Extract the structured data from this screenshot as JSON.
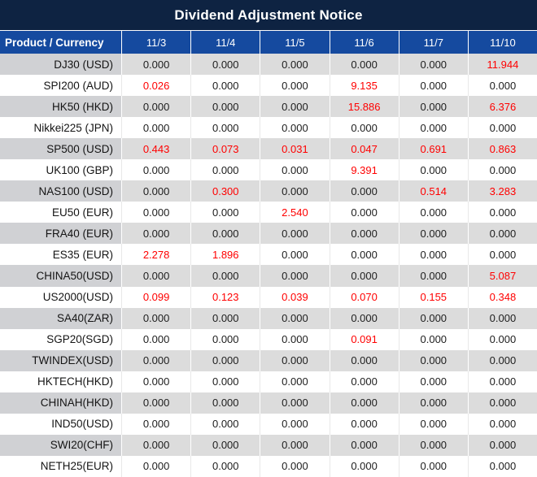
{
  "title": "Dividend Adjustment Notice",
  "table": {
    "product_header": "Product / Currency",
    "date_headers": [
      "11/3",
      "11/4",
      "11/5",
      "11/6",
      "11/7",
      "11/10"
    ],
    "rows": [
      {
        "product": "DJ30 (USD)",
        "values": [
          "0.000",
          "0.000",
          "0.000",
          "0.000",
          "0.000",
          "11.944"
        ],
        "red": [
          5
        ]
      },
      {
        "product": "SPI200 (AUD)",
        "values": [
          "0.026",
          "0.000",
          "0.000",
          "9.135",
          "0.000",
          "0.000"
        ],
        "red": [
          0,
          3
        ]
      },
      {
        "product": "HK50 (HKD)",
        "values": [
          "0.000",
          "0.000",
          "0.000",
          "15.886",
          "0.000",
          "6.376"
        ],
        "red": [
          3,
          5
        ]
      },
      {
        "product": "Nikkei225 (JPN)",
        "values": [
          "0.000",
          "0.000",
          "0.000",
          "0.000",
          "0.000",
          "0.000"
        ],
        "red": []
      },
      {
        "product": "SP500 (USD)",
        "values": [
          "0.443",
          "0.073",
          "0.031",
          "0.047",
          "0.691",
          "0.863"
        ],
        "red": [
          0,
          1,
          2,
          3,
          4,
          5
        ]
      },
      {
        "product": "UK100 (GBP)",
        "values": [
          "0.000",
          "0.000",
          "0.000",
          "9.391",
          "0.000",
          "0.000"
        ],
        "red": [
          3
        ]
      },
      {
        "product": "NAS100 (USD)",
        "values": [
          "0.000",
          "0.300",
          "0.000",
          "0.000",
          "0.514",
          "3.283"
        ],
        "red": [
          1,
          4,
          5
        ]
      },
      {
        "product": "EU50 (EUR)",
        "values": [
          "0.000",
          "0.000",
          "2.540",
          "0.000",
          "0.000",
          "0.000"
        ],
        "red": [
          2
        ]
      },
      {
        "product": "FRA40 (EUR)",
        "values": [
          "0.000",
          "0.000",
          "0.000",
          "0.000",
          "0.000",
          "0.000"
        ],
        "red": []
      },
      {
        "product": "ES35 (EUR)",
        "values": [
          "2.278",
          "1.896",
          "0.000",
          "0.000",
          "0.000",
          "0.000"
        ],
        "red": [
          0,
          1
        ]
      },
      {
        "product": "CHINA50(USD)",
        "values": [
          "0.000",
          "0.000",
          "0.000",
          "0.000",
          "0.000",
          "5.087"
        ],
        "red": [
          5
        ]
      },
      {
        "product": "US2000(USD)",
        "values": [
          "0.099",
          "0.123",
          "0.039",
          "0.070",
          "0.155",
          "0.348"
        ],
        "red": [
          0,
          1,
          2,
          3,
          4,
          5
        ]
      },
      {
        "product": "SA40(ZAR)",
        "values": [
          "0.000",
          "0.000",
          "0.000",
          "0.000",
          "0.000",
          "0.000"
        ],
        "red": []
      },
      {
        "product": "SGP20(SGD)",
        "values": [
          "0.000",
          "0.000",
          "0.000",
          "0.091",
          "0.000",
          "0.000"
        ],
        "red": [
          3
        ]
      },
      {
        "product": "TWINDEX(USD)",
        "values": [
          "0.000",
          "0.000",
          "0.000",
          "0.000",
          "0.000",
          "0.000"
        ],
        "red": []
      },
      {
        "product": "HKTECH(HKD)",
        "values": [
          "0.000",
          "0.000",
          "0.000",
          "0.000",
          "0.000",
          "0.000"
        ],
        "red": []
      },
      {
        "product": "CHINAH(HKD)",
        "values": [
          "0.000",
          "0.000",
          "0.000",
          "0.000",
          "0.000",
          "0.000"
        ],
        "red": []
      },
      {
        "product": "IND50(USD)",
        "values": [
          "0.000",
          "0.000",
          "0.000",
          "0.000",
          "0.000",
          "0.000"
        ],
        "red": []
      },
      {
        "product": "SWI20(CHF)",
        "values": [
          "0.000",
          "0.000",
          "0.000",
          "0.000",
          "0.000",
          "0.000"
        ],
        "red": []
      },
      {
        "product": "NETH25(EUR)",
        "values": [
          "0.000",
          "0.000",
          "0.000",
          "0.000",
          "0.000",
          "0.000"
        ],
        "red": []
      }
    ]
  },
  "colors": {
    "title_bar_bg": "#0e2342",
    "header_bg": "#154a9f",
    "header_text": "#ffffff",
    "row_gray_value_bg": "#dcdcdc",
    "row_gray_product_bg": "#d0d1d4",
    "row_white_bg": "#ffffff",
    "value_text": "#202020",
    "value_red": "#ff0000"
  }
}
